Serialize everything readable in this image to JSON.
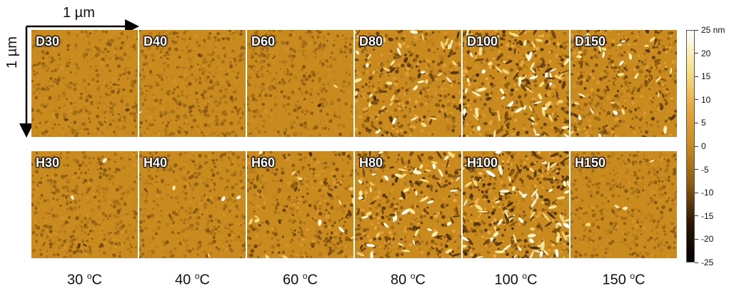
{
  "scale": {
    "x_label": "1 µm",
    "y_label": "1 µm"
  },
  "panels": {
    "top": [
      {
        "label": "D30",
        "roughness": 0.15
      },
      {
        "label": "D40",
        "roughness": 0.15
      },
      {
        "label": "D60",
        "roughness": 0.15
      },
      {
        "label": "D80",
        "roughness": 0.65
      },
      {
        "label": "D100",
        "roughness": 0.85
      },
      {
        "label": "D150",
        "roughness": 0.6
      }
    ],
    "bottom": [
      {
        "label": "H30",
        "roughness": 0.2
      },
      {
        "label": "H40",
        "roughness": 0.2
      },
      {
        "label": "H60",
        "roughness": 0.45
      },
      {
        "label": "H80",
        "roughness": 0.8
      },
      {
        "label": "H100",
        "roughness": 0.95
      },
      {
        "label": "H150",
        "roughness": 0.2
      }
    ]
  },
  "temperatures": [
    {
      "value": "30",
      "sup": "o",
      "unit": "C"
    },
    {
      "value": "40",
      "sup": "o",
      "unit": "C"
    },
    {
      "value": "60",
      "sup": "o",
      "unit": "C"
    },
    {
      "value": "80",
      "sup": "o",
      "unit": "C"
    },
    {
      "value": "100",
      "sup": "o",
      "unit": "C"
    },
    {
      "value": "150",
      "sup": "o",
      "unit": "C"
    }
  ],
  "colorbar": {
    "ticks": [
      "25 nm",
      "20",
      "15",
      "10",
      "5",
      "0",
      "-5",
      "-10",
      "-15",
      "-20",
      "-25"
    ],
    "colors": [
      "#ffffff",
      "#f7e28a",
      "#e8a83c",
      "#c98a1e",
      "#8a5a10",
      "#2a1604",
      "#000000"
    ]
  }
}
